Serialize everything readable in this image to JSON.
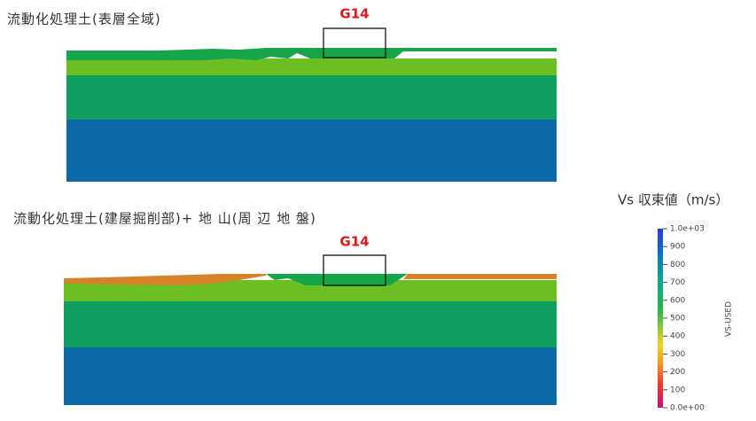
{
  "panels": [
    {
      "caption": "流動化処理土(表層全域)",
      "marker": "G14"
    },
    {
      "caption": "流動化処理土(建屋掘削部)+ 地 山(周 辺 地 盤)",
      "marker": "G14"
    }
  ],
  "colorbar": {
    "title": "Vs 収束値（m/s）",
    "axis_label": "VS-USED",
    "lim": [
      0,
      1000
    ],
    "ticks": [
      {
        "value": 1000,
        "label": "1.0e+03"
      },
      900,
      800,
      700,
      600,
      500,
      400,
      300,
      200,
      100,
      {
        "value": 0,
        "label": "0.0e+00"
      }
    ]
  }
}
